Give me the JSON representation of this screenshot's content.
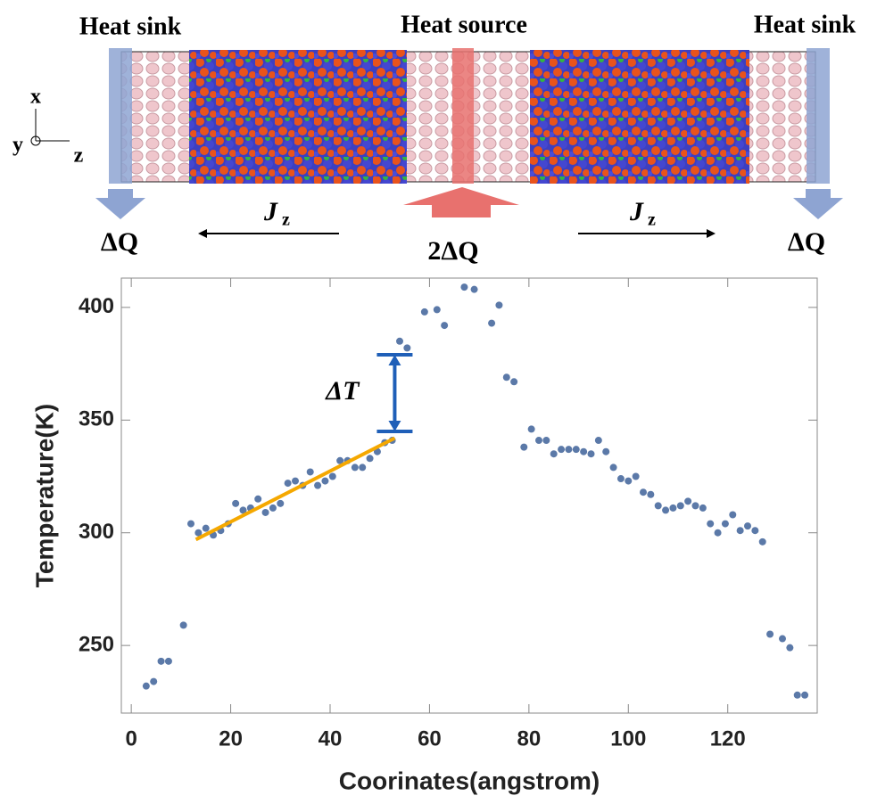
{
  "schematic": {
    "left_label": "Heat sink",
    "center_label": "Heat source",
    "right_label": "Heat sink",
    "left_flow": "ΔQ",
    "center_flow": "2ΔQ",
    "right_flow": "ΔQ",
    "flux": "J",
    "flux_subscript": "z",
    "axis_x": "x",
    "axis_y": "y",
    "axis_z": "z"
  },
  "chart_data": {
    "type": "scatter",
    "xlabel": "Coorinates(angstrom)",
    "ylabel": "Temperature(K)",
    "xlim": [
      -2,
      138
    ],
    "ylim": [
      220,
      413
    ],
    "xticks": [
      0,
      20,
      40,
      60,
      80,
      100,
      120
    ],
    "yticks": [
      250,
      300,
      350,
      400
    ],
    "series": [
      {
        "color": "#5b79a8",
        "x": [
          3,
          4.5,
          6,
          7.5,
          10.5,
          12,
          13.5,
          15,
          16.5,
          18,
          19.5,
          21,
          22.5,
          24,
          25.5,
          27,
          28.5,
          30,
          31.5,
          33,
          34.5,
          36,
          37.5,
          39,
          40.5,
          42,
          43.5,
          45,
          46.5,
          48,
          49.5,
          51,
          52.5,
          54,
          55.5,
          59,
          61.5,
          63,
          67,
          69,
          72.5,
          74,
          75.5,
          77,
          79,
          80.5,
          82,
          83.5,
          85,
          86.5,
          88,
          89.5,
          91,
          92.5,
          94,
          95.5,
          97,
          98.5,
          100,
          101.5,
          103,
          104.5,
          106,
          107.5,
          109,
          110.5,
          112,
          113.5,
          115,
          116.5,
          118,
          119.5,
          121,
          122.5,
          124,
          125.5,
          127,
          128.5,
          131,
          132.5,
          134,
          135.5
        ],
        "values": [
          232,
          234,
          243,
          243,
          259,
          304,
          300,
          302,
          299,
          301,
          304,
          313,
          310,
          311,
          315,
          309,
          311,
          313,
          322,
          323,
          321,
          327,
          321,
          323,
          325,
          332,
          332,
          329,
          329,
          333,
          336,
          340,
          341,
          385,
          382,
          398,
          399,
          392,
          409,
          408,
          393,
          401,
          369,
          367,
          338,
          346,
          341,
          341,
          335,
          337,
          337,
          337,
          336,
          335,
          341,
          336,
          329,
          324,
          323,
          325,
          318,
          317,
          312,
          310,
          311,
          312,
          314,
          312,
          311,
          304,
          300,
          304,
          308,
          301,
          303,
          301,
          296,
          255,
          253,
          249,
          228,
          228
        ]
      }
    ],
    "fit": {
      "x": [
        13,
        53
      ],
      "values": [
        297,
        342
      ],
      "color": "#f5a800"
    },
    "annotations": [
      {
        "text": "ΔT",
        "x": 53,
        "y_from": 345,
        "y_to": 379,
        "color": "#1f5fb8"
      }
    ]
  }
}
